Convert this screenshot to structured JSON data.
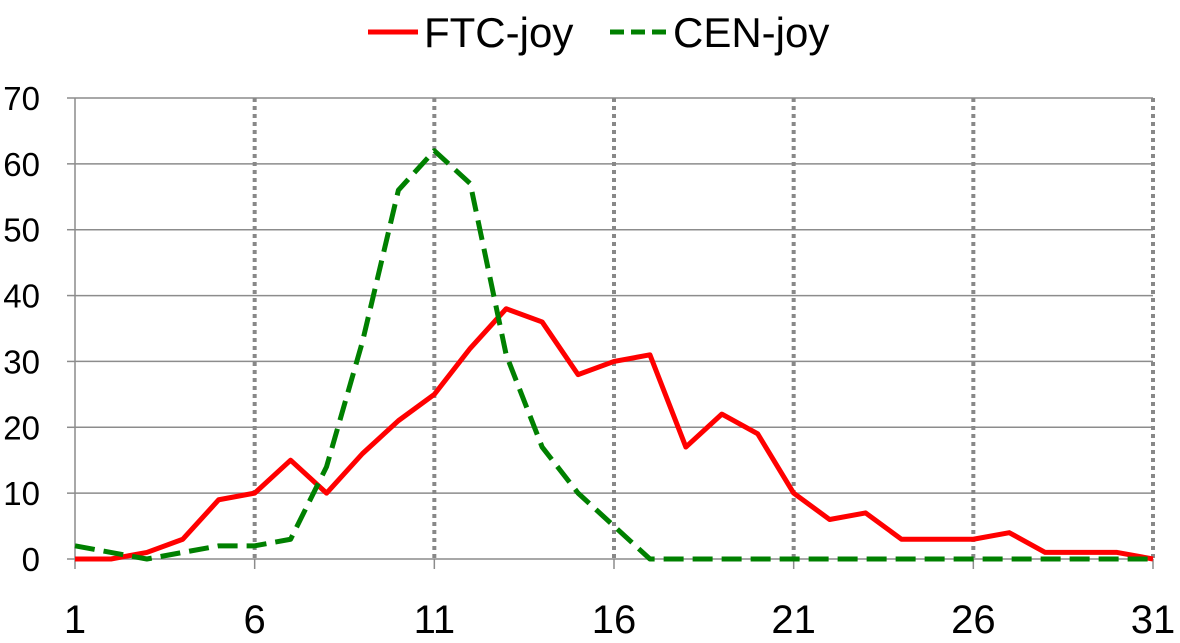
{
  "chart_data": {
    "type": "line",
    "title": "",
    "xlabel": "",
    "ylabel": "",
    "xlim": [
      1,
      31
    ],
    "ylim": [
      0,
      70
    ],
    "x_ticks": [
      "1",
      "6",
      "11",
      "16",
      "21",
      "26",
      "31"
    ],
    "y_ticks": [
      "0",
      "10",
      "20",
      "30",
      "40",
      "50",
      "60",
      "70"
    ],
    "grid": {
      "horizontal": "solid",
      "vertical": "dotted"
    },
    "legend_position": "top",
    "x": [
      1,
      2,
      3,
      4,
      5,
      6,
      7,
      8,
      9,
      10,
      11,
      12,
      13,
      14,
      15,
      16,
      17,
      18,
      19,
      20,
      21,
      22,
      23,
      24,
      25,
      26,
      27,
      28,
      29,
      30,
      31
    ],
    "series": [
      {
        "name": "FTC-joy",
        "color": "#ff0000",
        "dash": "solid",
        "values": [
          0,
          0,
          1,
          3,
          9,
          10,
          15,
          10,
          16,
          21,
          25,
          32,
          38,
          36,
          28,
          30,
          31,
          17,
          22,
          19,
          10,
          6,
          7,
          3,
          3,
          3,
          4,
          1,
          1,
          1,
          0
        ]
      },
      {
        "name": "CEN-joy",
        "color": "#008000",
        "dash": "dashed",
        "values": [
          2,
          1,
          0,
          1,
          2,
          2,
          3,
          14,
          33,
          56,
          62,
          57,
          31,
          17,
          10,
          5,
          0,
          0,
          0,
          0,
          0,
          0,
          0,
          0,
          0,
          0,
          0,
          0,
          0,
          0,
          0
        ]
      }
    ]
  }
}
